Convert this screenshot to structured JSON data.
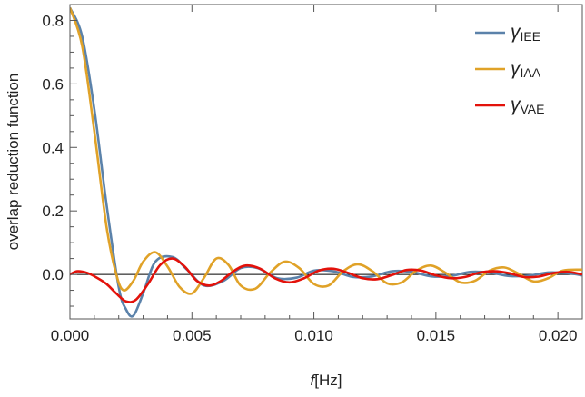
{
  "chart_data": {
    "type": "line",
    "xlabel_italic": "f",
    "xlabel_unit": "[Hz]",
    "ylabel": "overlap reduction function",
    "xlim": [
      0,
      0.021
    ],
    "ylim": [
      -0.14,
      0.85
    ],
    "xticks": [
      0,
      0.005,
      0.01,
      0.015,
      0.02
    ],
    "xtick_labels": [
      "0.000",
      "0.005",
      "0.010",
      "0.015",
      "0.020"
    ],
    "yticks": [
      0,
      0.2,
      0.4,
      0.6,
      0.8
    ],
    "ytick_labels": [
      "0.0",
      "0.2",
      "0.4",
      "0.6",
      "0.8"
    ],
    "legend_position": "top-right",
    "series": [
      {
        "name": "γ",
        "subscript": "IEE",
        "color": "#5b82aa",
        "x": [
          0,
          0.0005,
          0.001,
          0.0015,
          0.002,
          0.0023,
          0.0026,
          0.003,
          0.0035,
          0.0042,
          0.0048,
          0.0055,
          0.0063,
          0.007,
          0.0077,
          0.0085,
          0.0093,
          0.01,
          0.0108,
          0.0116,
          0.0124,
          0.0132,
          0.014,
          0.0148,
          0.0156,
          0.0164,
          0.0172,
          0.018,
          0.0188,
          0.0196,
          0.0204,
          0.021
        ],
        "y": [
          0.84,
          0.75,
          0.52,
          0.22,
          -0.04,
          -0.11,
          -0.13,
          -0.06,
          0.04,
          0.055,
          0.015,
          -0.035,
          -0.02,
          0.02,
          0.02,
          -0.012,
          -0.01,
          0.012,
          0.01,
          -0.008,
          -0.006,
          0.01,
          0.008,
          -0.006,
          -0.005,
          0.008,
          0.006,
          -0.005,
          -0.004,
          0.006,
          0.004,
          -0.003
        ]
      },
      {
        "name": "γ",
        "subscript": "IAA",
        "color": "#e0a228",
        "x": [
          0,
          0.0005,
          0.001,
          0.0015,
          0.0019,
          0.0022,
          0.0026,
          0.003,
          0.0035,
          0.004,
          0.0045,
          0.005,
          0.0055,
          0.006,
          0.0065,
          0.007,
          0.0076,
          0.0082,
          0.0088,
          0.0094,
          0.01,
          0.0106,
          0.0112,
          0.0118,
          0.0124,
          0.013,
          0.0136,
          0.0142,
          0.0148,
          0.0154,
          0.016,
          0.0166,
          0.0172,
          0.0178,
          0.0184,
          0.019,
          0.0196,
          0.0202,
          0.021
        ],
        "y": [
          0.84,
          0.72,
          0.45,
          0.15,
          0.0,
          -0.05,
          -0.02,
          0.04,
          0.07,
          0.025,
          -0.04,
          -0.06,
          -0.01,
          0.05,
          0.03,
          -0.035,
          -0.045,
          0.005,
          0.04,
          0.02,
          -0.03,
          -0.035,
          0.01,
          0.032,
          0.01,
          -0.028,
          -0.025,
          0.012,
          0.028,
          0.005,
          -0.025,
          -0.02,
          0.012,
          0.022,
          0.002,
          -0.022,
          -0.012,
          0.012,
          0.015
        ]
      },
      {
        "name": "γ",
        "subscript": "VAE",
        "color": "#e3120b",
        "x": [
          0,
          0.0003,
          0.0007,
          0.0011,
          0.0015,
          0.0019,
          0.0023,
          0.0027,
          0.0032,
          0.0037,
          0.0042,
          0.0047,
          0.0052,
          0.0057,
          0.0062,
          0.0067,
          0.0072,
          0.0078,
          0.0084,
          0.009,
          0.0096,
          0.0102,
          0.0108,
          0.0114,
          0.012,
          0.0126,
          0.0132,
          0.0138,
          0.0144,
          0.015,
          0.0156,
          0.0162,
          0.0168,
          0.0174,
          0.018,
          0.0186,
          0.0192,
          0.0198,
          0.0204,
          0.021
        ],
        "y": [
          0.0,
          0.01,
          0.005,
          -0.01,
          -0.03,
          -0.06,
          -0.085,
          -0.08,
          -0.03,
          0.03,
          0.05,
          0.025,
          -0.02,
          -0.035,
          -0.02,
          0.01,
          0.028,
          0.018,
          -0.012,
          -0.025,
          -0.012,
          0.012,
          0.018,
          0.005,
          -0.012,
          -0.015,
          -0.002,
          0.014,
          0.012,
          -0.003,
          -0.012,
          -0.008,
          0.006,
          0.01,
          0.004,
          -0.008,
          -0.007,
          0.004,
          0.008,
          0.0
        ]
      }
    ]
  }
}
